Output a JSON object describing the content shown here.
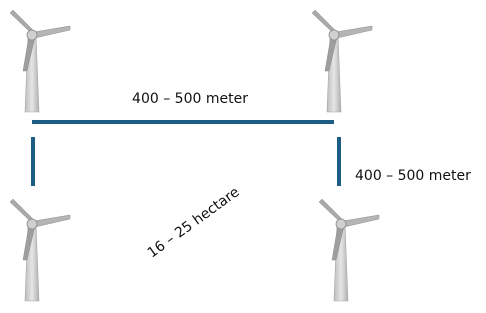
{
  "labels": {
    "top_distance": "400 – 500 meter",
    "side_distance": "400 – 500 meter",
    "area": "16 – 25 hectare"
  }
}
